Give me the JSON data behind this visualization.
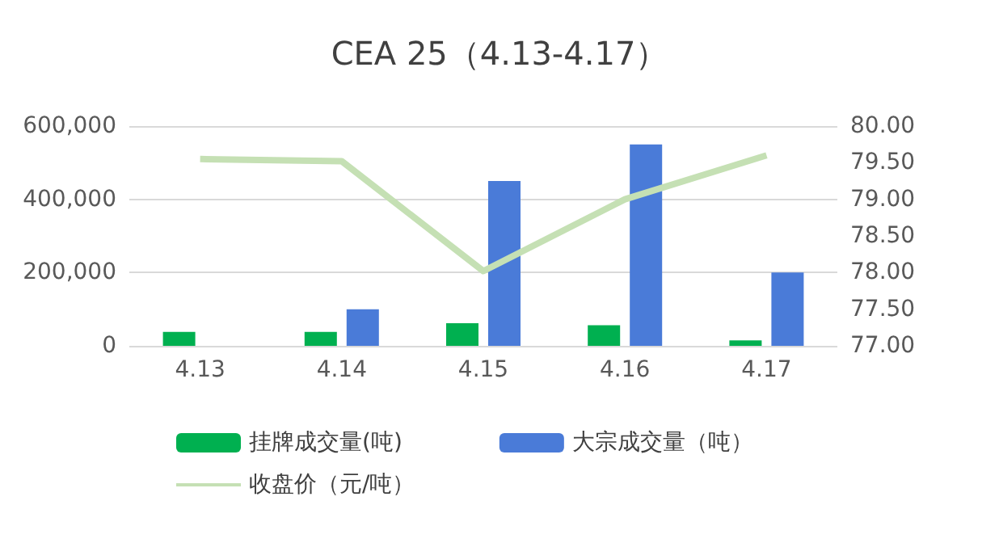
{
  "chart_data": {
    "type": "bar",
    "title": "CEA 25（4.13-4.17）",
    "categories": [
      "4.13",
      "4.14",
      "4.15",
      "4.16",
      "4.17"
    ],
    "series": [
      {
        "name": "挂牌成交量(吨)",
        "color": "#00b050",
        "values": [
          38000,
          38000,
          62000,
          56000,
          15000
        ]
      },
      {
        "name": "大宗成交量（吨）",
        "color": "#4a7bd8",
        "values": [
          null,
          100000,
          450000,
          550000,
          200000
        ]
      },
      {
        "name": "收盘价（元/吨）",
        "type": "line",
        "axis": "y2",
        "color": "#c5e0b4",
        "values": [
          79.55,
          79.52,
          78.02,
          79.0,
          79.6
        ]
      }
    ],
    "ylim": [
      0,
      600000
    ],
    "yticks": [
      {
        "value": 0,
        "label": "0"
      },
      {
        "value": 200000,
        "label": "200,000"
      },
      {
        "value": 400000,
        "label": "400,000"
      },
      {
        "value": 600000,
        "label": "600,000"
      }
    ],
    "y2lim": [
      77,
      80
    ],
    "y2ticks": [
      {
        "value": 77,
        "label": "77.00"
      },
      {
        "value": 77.5,
        "label": "77.50"
      },
      {
        "value": 78,
        "label": "78.00"
      },
      {
        "value": 78.5,
        "label": "78.50"
      },
      {
        "value": 79,
        "label": "79.00"
      },
      {
        "value": 79.5,
        "label": "79.50"
      },
      {
        "value": 80,
        "label": "80.00"
      }
    ],
    "grid": "y",
    "legend": "bottom",
    "marker": "none",
    "line_style": "solid"
  }
}
